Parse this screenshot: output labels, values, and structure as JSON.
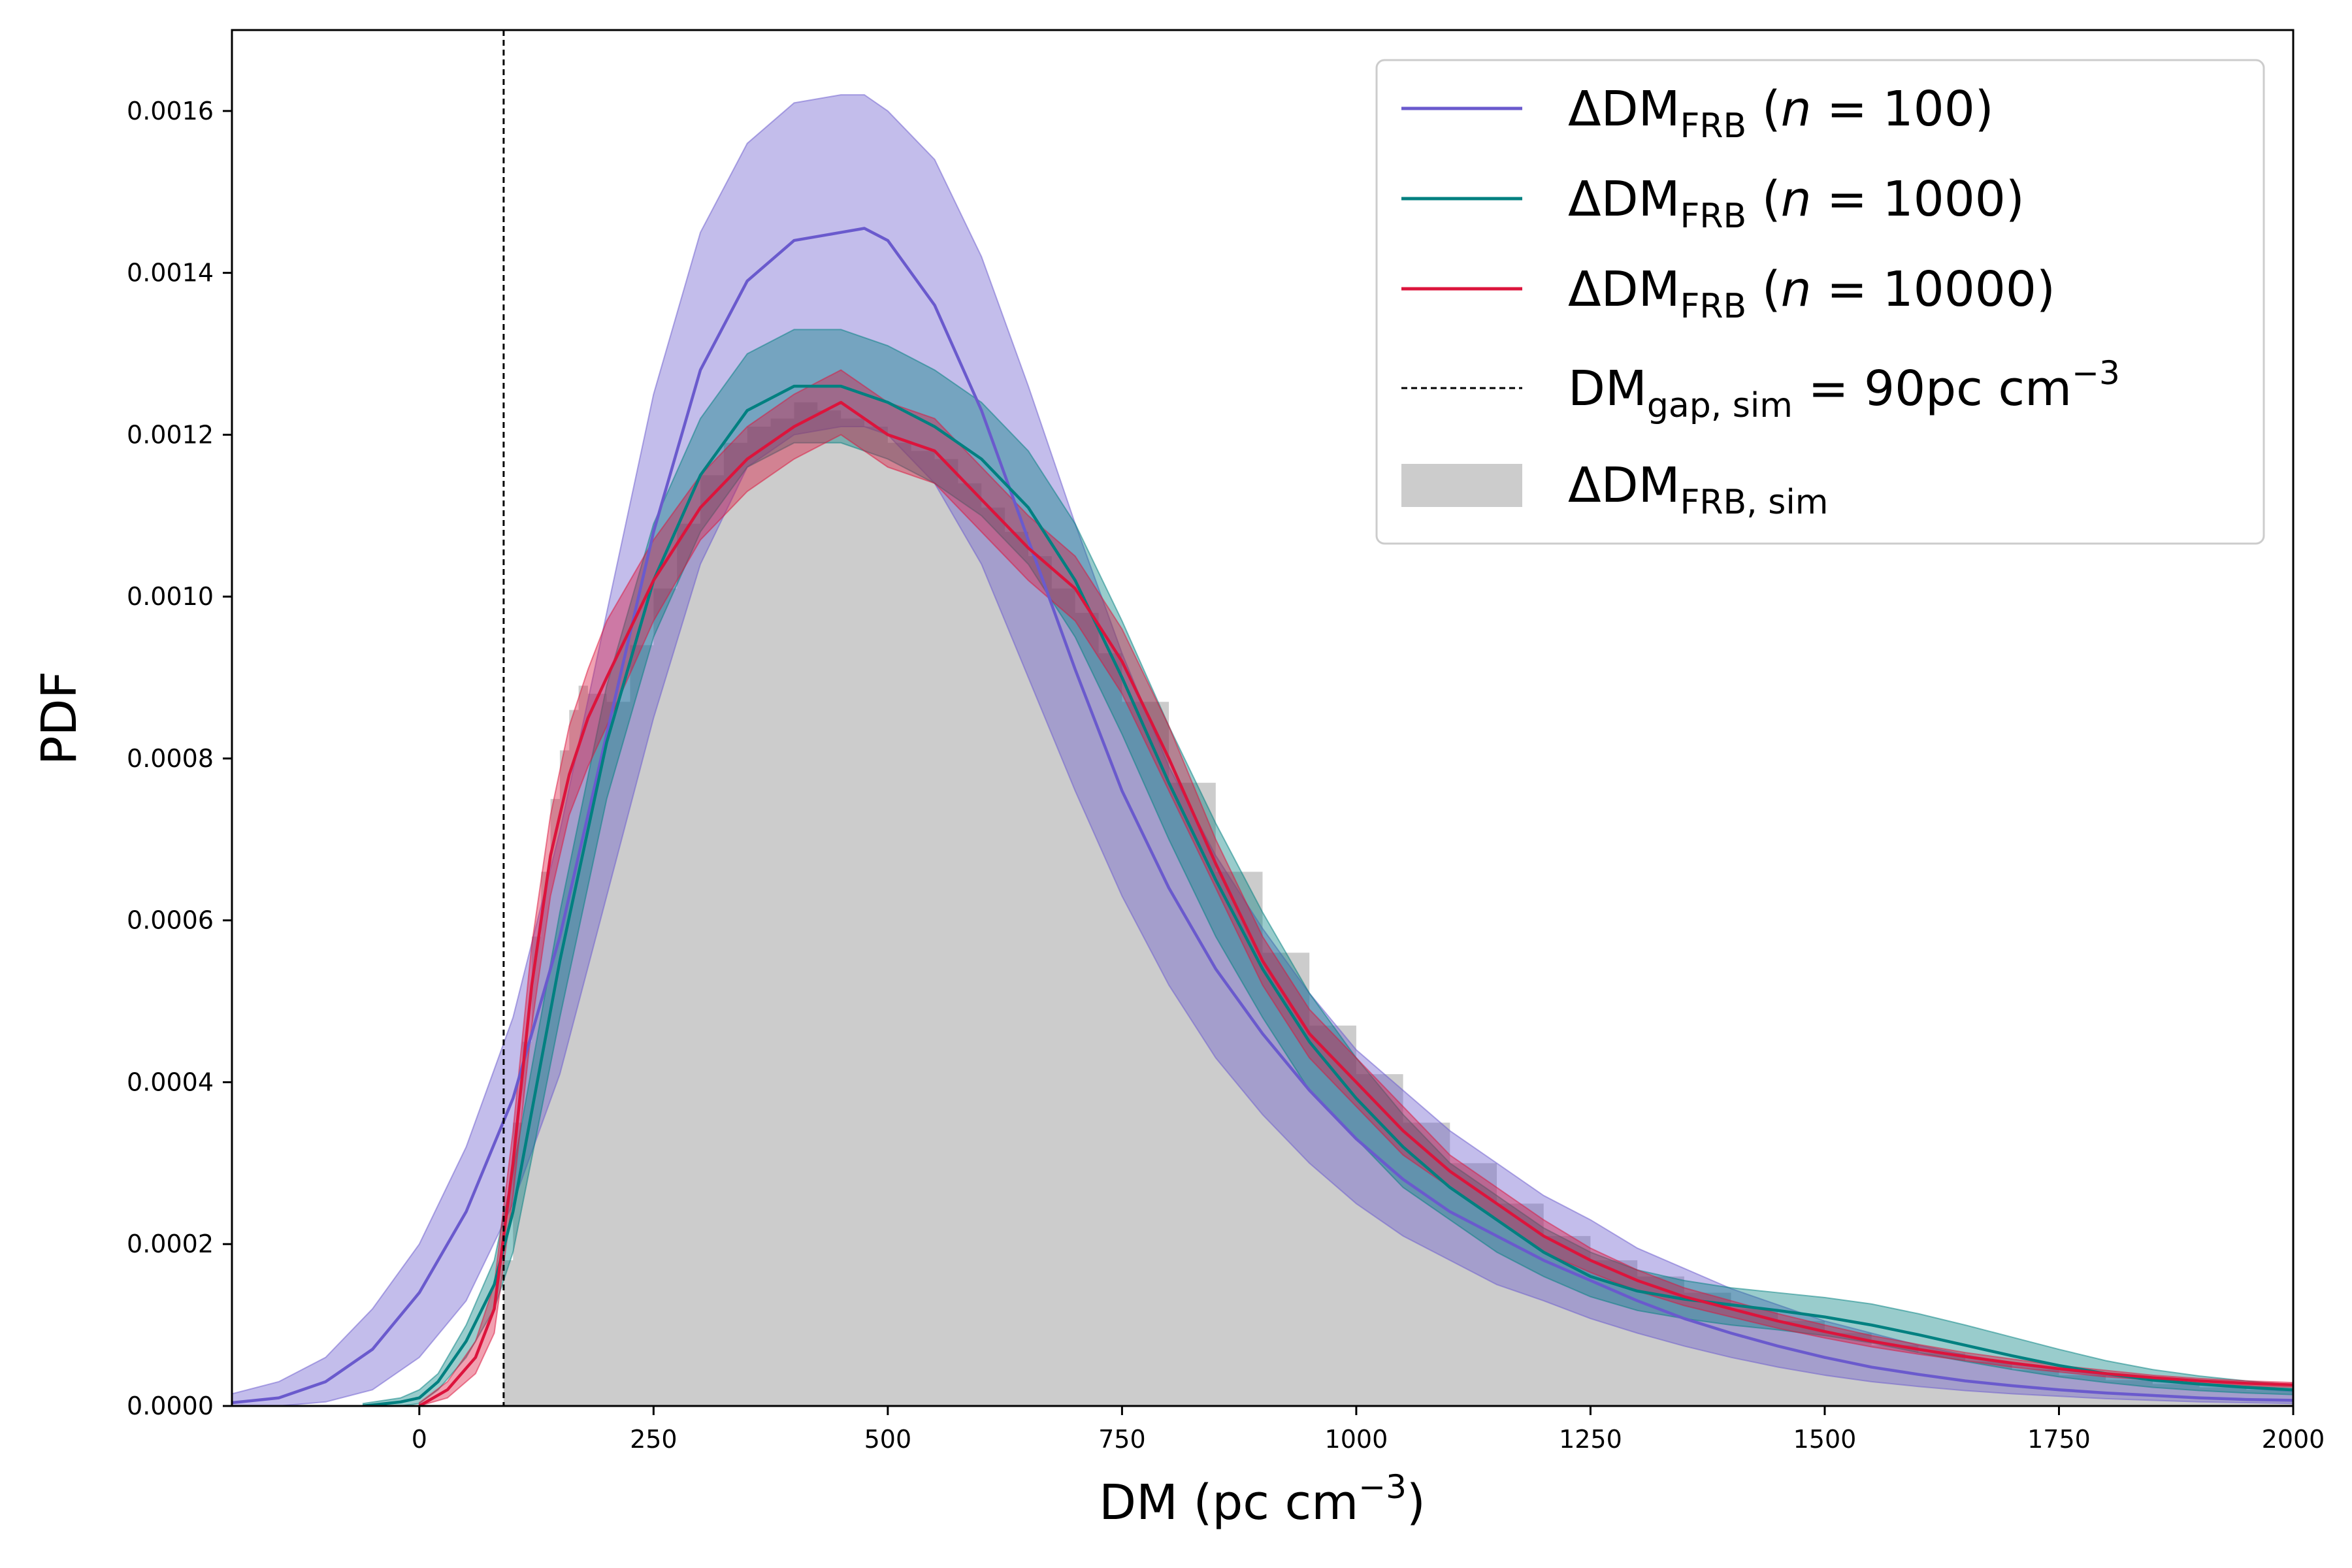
{
  "chart_data": {
    "type": "area",
    "xlabel_text": "DM (pc cm",
    "xlabel_sup": "−3",
    "xlabel_close": ")",
    "ylabel": "PDF",
    "xlim": [
      -200,
      2000
    ],
    "ylim": [
      0,
      0.0017
    ],
    "xticks": [
      "0",
      "250",
      "500",
      "750",
      "1000",
      "1250",
      "1500",
      "1750",
      "2000"
    ],
    "yticks": [
      "0.0000",
      "0.0002",
      "0.0004",
      "0.0006",
      "0.0008",
      "0.0010",
      "0.0012",
      "0.0014",
      "0.0016"
    ],
    "grid": false,
    "legend_position": "top-right",
    "vline": {
      "x": 90,
      "color": "#000000",
      "label_main": "DM",
      "label_sub": "gap, sim",
      "label_tail": " = 90pc cm",
      "label_sup": "−3"
    },
    "histogram": {
      "color": "#cccccc",
      "label_main": "ΔDM",
      "label_sub": "FRB, sim",
      "x": [
        90,
        100,
        110,
        120,
        130,
        140,
        150,
        160,
        170,
        180,
        200,
        225,
        250,
        275,
        300,
        325,
        350,
        375,
        400,
        425,
        450,
        475,
        500,
        525,
        550,
        575,
        600,
        625,
        650,
        675,
        700,
        725,
        750,
        800,
        850,
        900,
        950,
        1000,
        1050,
        1100,
        1150,
        1200,
        1250,
        1300,
        1350,
        1400,
        1450,
        1500,
        1550,
        1600,
        1650,
        1700,
        1750,
        1800,
        1850,
        1900,
        1950,
        2000
      ],
      "y": [
        0.00018,
        0.00035,
        0.00045,
        0.00058,
        0.00066,
        0.00075,
        0.00081,
        0.00086,
        0.00089,
        0.00088,
        0.00087,
        0.00094,
        0.00101,
        0.00109,
        0.00115,
        0.00119,
        0.00121,
        0.00122,
        0.00124,
        0.00123,
        0.00122,
        0.00121,
        0.00119,
        0.00118,
        0.00117,
        0.00114,
        0.00111,
        0.00108,
        0.00105,
        0.00101,
        0.00098,
        0.00093,
        0.00087,
        0.00077,
        0.00066,
        0.00056,
        0.00047,
        0.00041,
        0.00035,
        0.0003,
        0.00025,
        0.00021,
        0.00018,
        0.00016,
        0.00014,
        0.00012,
        0.000105,
        9e-05,
        7.5e-05,
        6.5e-05,
        5.5e-05,
        4.5e-05,
        3.8e-05,
        3.2e-05,
        2.7e-05,
        2.3e-05,
        2e-05,
        1.8e-05
      ]
    },
    "series": [
      {
        "label_main": "ΔDM",
        "label_sub": "FRB",
        "label_tail": " (",
        "label_n": "n",
        "label_eq": " = 100)",
        "color": "#6a5acd",
        "x": [
          -200,
          -150,
          -100,
          -50,
          0,
          50,
          100,
          150,
          200,
          250,
          300,
          350,
          400,
          450,
          475,
          500,
          550,
          600,
          650,
          700,
          750,
          800,
          850,
          900,
          950,
          1000,
          1050,
          1100,
          1150,
          1200,
          1250,
          1300,
          1350,
          1400,
          1450,
          1500,
          1550,
          1600,
          1650,
          1700,
          1750,
          1800,
          1850,
          1900,
          1950,
          2000
        ],
        "y": [
          4e-06,
          1e-05,
          3e-05,
          7e-05,
          0.00014,
          0.00024,
          0.00038,
          0.00058,
          0.00083,
          0.00108,
          0.00128,
          0.00139,
          0.00144,
          0.00145,
          0.001455,
          0.00144,
          0.00136,
          0.00123,
          0.00107,
          0.00091,
          0.00076,
          0.00064,
          0.00054,
          0.00046,
          0.00039,
          0.00033,
          0.00028,
          0.00024,
          0.00021,
          0.00018,
          0.000155,
          0.00013,
          0.000108,
          9e-05,
          7.4e-05,
          6e-05,
          4.8e-05,
          3.9e-05,
          3.1e-05,
          2.5e-05,
          2e-05,
          1.6e-05,
          1.3e-05,
          1e-05,
          8e-06,
          7e-06
        ],
        "upper": [
          1.5e-05,
          3e-05,
          6e-05,
          0.00012,
          0.0002,
          0.00032,
          0.00048,
          0.00071,
          0.00098,
          0.00125,
          0.00145,
          0.00156,
          0.00161,
          0.00162,
          0.00162,
          0.0016,
          0.00154,
          0.00142,
          0.00126,
          0.00109,
          0.00093,
          0.00079,
          0.00068,
          0.00059,
          0.00051,
          0.00044,
          0.00039,
          0.00034,
          0.0003,
          0.00026,
          0.00023,
          0.000195,
          0.00017,
          0.000145,
          0.000125,
          0.000105,
          9e-05,
          7.5e-05,
          6.3e-05,
          5.3e-05,
          4.5e-05,
          3.8e-05,
          3.2e-05,
          2.7e-05,
          2.2e-05,
          1.8e-05
        ],
        "lower": [
          0.0,
          0.0,
          5e-06,
          2e-05,
          6e-05,
          0.00013,
          0.00025,
          0.00041,
          0.00063,
          0.00085,
          0.00104,
          0.00116,
          0.0012,
          0.00121,
          0.00121,
          0.0012,
          0.00114,
          0.00104,
          0.0009,
          0.00076,
          0.00063,
          0.00052,
          0.00043,
          0.00036,
          0.0003,
          0.00025,
          0.00021,
          0.00018,
          0.00015,
          0.00013,
          0.000108,
          9e-05,
          7.4e-05,
          6e-05,
          4.8e-05,
          3.8e-05,
          3e-05,
          2.4e-05,
          1.9e-05,
          1.5e-05,
          1.2e-05,
          9e-06,
          7e-06,
          5e-06,
          4e-06,
          3e-06
        ]
      },
      {
        "label_main": "ΔDM",
        "label_sub": "FRB",
        "label_tail": " (",
        "label_n": "n",
        "label_eq": " = 1000)",
        "color": "#008080",
        "x": [
          -60,
          -20,
          0,
          20,
          50,
          80,
          100,
          150,
          200,
          250,
          300,
          350,
          400,
          450,
          500,
          550,
          600,
          650,
          700,
          750,
          800,
          850,
          900,
          950,
          1000,
          1050,
          1100,
          1150,
          1200,
          1250,
          1300,
          1350,
          1400,
          1450,
          1500,
          1550,
          1600,
          1650,
          1700,
          1750,
          1800,
          1850,
          1900,
          1950,
          2000
        ],
        "y": [
          0.0,
          5e-06,
          1e-05,
          3e-05,
          8e-05,
          0.00015,
          0.00024,
          0.00055,
          0.00082,
          0.00102,
          0.00115,
          0.00123,
          0.00126,
          0.00126,
          0.00124,
          0.00121,
          0.00117,
          0.00111,
          0.00102,
          0.0009,
          0.00077,
          0.00065,
          0.00054,
          0.00045,
          0.00038,
          0.00032,
          0.00027,
          0.00023,
          0.00019,
          0.00016,
          0.000142,
          0.000132,
          0.000125,
          0.000118,
          0.00011,
          0.0001,
          8.8e-05,
          7.5e-05,
          6.2e-05,
          5e-05,
          4e-05,
          3.2e-05,
          2.7e-05,
          2.3e-05,
          2e-05
        ],
        "upper": [
          3e-06,
          1e-05,
          2e-05,
          4e-05,
          0.0001,
          0.00018,
          0.00029,
          0.00061,
          0.00089,
          0.00109,
          0.00122,
          0.0013,
          0.00133,
          0.00133,
          0.00131,
          0.00128,
          0.00124,
          0.00118,
          0.00109,
          0.00097,
          0.00084,
          0.00072,
          0.00061,
          0.00051,
          0.00043,
          0.00036,
          0.0003,
          0.00026,
          0.00022,
          0.00019,
          0.000168,
          0.000155,
          0.000146,
          0.00014,
          0.000134,
          0.000126,
          0.000114,
          0.0001,
          8.5e-05,
          7e-05,
          5.6e-05,
          4.5e-05,
          3.7e-05,
          3.1e-05,
          2.6e-05
        ],
        "lower": [
          0.0,
          0.0,
          3e-06,
          2e-05,
          6e-05,
          0.00012,
          0.00019,
          0.00048,
          0.00075,
          0.00095,
          0.00108,
          0.00116,
          0.00119,
          0.00119,
          0.00117,
          0.00114,
          0.0011,
          0.00104,
          0.00095,
          0.00083,
          0.0007,
          0.00058,
          0.00048,
          0.00039,
          0.00033,
          0.00027,
          0.00023,
          0.00019,
          0.00016,
          0.000135,
          0.000118,
          0.000108,
          0.0001,
          9.4e-05,
          8.7e-05,
          7.8e-05,
          6.6e-05,
          5.5e-05,
          4.5e-05,
          3.6e-05,
          2.9e-05,
          2.3e-05,
          1.9e-05,
          1.6e-05,
          1.4e-05
        ]
      },
      {
        "label_main": "ΔDM",
        "label_sub": "FRB",
        "label_tail": " (",
        "label_n": "n",
        "label_eq": " = 10000)",
        "color": "#dc143c",
        "x": [
          0,
          30,
          60,
          80,
          100,
          120,
          140,
          160,
          180,
          200,
          250,
          300,
          350,
          400,
          450,
          500,
          550,
          600,
          650,
          700,
          750,
          800,
          850,
          900,
          950,
          1000,
          1050,
          1100,
          1150,
          1200,
          1250,
          1300,
          1350,
          1400,
          1450,
          1500,
          1550,
          1600,
          1650,
          1700,
          1750,
          1800,
          1850,
          1900,
          1950,
          2000
        ],
        "y": [
          0.0,
          2e-05,
          6e-05,
          0.00012,
          0.0003,
          0.00052,
          0.00068,
          0.00078,
          0.00085,
          0.0009,
          0.00102,
          0.00111,
          0.00117,
          0.00121,
          0.00124,
          0.0012,
          0.00118,
          0.00112,
          0.00106,
          0.00101,
          0.00092,
          0.0008,
          0.00067,
          0.00055,
          0.00046,
          0.0004,
          0.00034,
          0.00029,
          0.00025,
          0.00021,
          0.00018,
          0.000155,
          0.000135,
          0.00012,
          0.000105,
          9.2e-05,
          8e-05,
          7e-05,
          6.1e-05,
          5.3e-05,
          4.6e-05,
          4e-05,
          3.5e-05,
          3.1e-05,
          2.8e-05,
          2.6e-05
        ],
        "upper": [
          4e-06,
          3e-05,
          8e-05,
          0.00015,
          0.00034,
          0.00057,
          0.00073,
          0.00084,
          0.00091,
          0.00097,
          0.00107,
          0.00115,
          0.00121,
          0.00125,
          0.00128,
          0.00124,
          0.00122,
          0.00116,
          0.0011,
          0.00105,
          0.00096,
          0.00084,
          0.0007,
          0.00058,
          0.00049,
          0.00043,
          0.00037,
          0.00031,
          0.00027,
          0.00023,
          0.000195,
          0.000168,
          0.000146,
          0.00013,
          0.000114,
          0.0001,
          8.7e-05,
          7.6e-05,
          6.6e-05,
          5.8e-05,
          5e-05,
          4.4e-05,
          3.8e-05,
          3.4e-05,
          3.1e-05,
          2.9e-05
        ],
        "lower": [
          0.0,
          1e-05,
          4e-05,
          9e-05,
          0.00026,
          0.00047,
          0.00063,
          0.00073,
          0.00079,
          0.00084,
          0.00097,
          0.00107,
          0.00113,
          0.00117,
          0.0012,
          0.00116,
          0.00114,
          0.00108,
          0.00102,
          0.00097,
          0.00088,
          0.00076,
          0.00064,
          0.00052,
          0.00043,
          0.00037,
          0.00031,
          0.00027,
          0.00023,
          0.00019,
          0.000165,
          0.000142,
          0.000124,
          0.00011,
          9.6e-05,
          8.4e-05,
          7.3e-05,
          6.4e-05,
          5.6e-05,
          4.8e-05,
          4.2e-05,
          3.6e-05,
          3.2e-05,
          2.8e-05,
          2.5e-05,
          2.3e-05
        ]
      }
    ]
  }
}
